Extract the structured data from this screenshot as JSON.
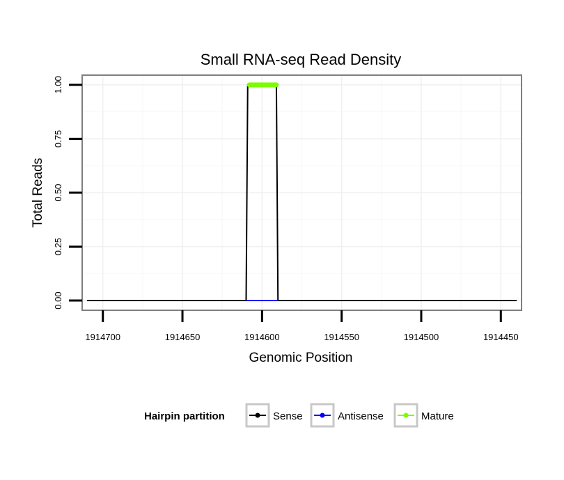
{
  "chart_data": {
    "type": "line",
    "title": "Small RNA-seq Read Density",
    "xlabel": "Genomic Position",
    "ylabel": "Total Reads",
    "x_reversed": true,
    "xlim": [
      1914713,
      1914437
    ],
    "ylim": [
      -0.045,
      1.045
    ],
    "x_ticks": [
      1914700,
      1914650,
      1914600,
      1914550,
      1914500,
      1914450
    ],
    "x_tick_labels": [
      "1914700",
      "1914650",
      "1914600",
      "1914550",
      "1914500",
      "1914450"
    ],
    "y_ticks": [
      0,
      0.25,
      0.5,
      0.75,
      1.0
    ],
    "y_tick_labels": [
      "0.00",
      "0.25",
      "0.50",
      "0.75",
      "1.00"
    ],
    "grid": true,
    "legend": {
      "title": "Hairpin partition",
      "position": "bottom",
      "entries": [
        "Sense",
        "Antisense",
        "Mature"
      ]
    },
    "series": [
      {
        "name": "Sense",
        "color": "#000000",
        "points": [
          [
            1914710,
            0
          ],
          [
            1914610,
            0
          ],
          [
            1914609,
            1
          ],
          [
            1914591,
            1
          ],
          [
            1914590,
            0
          ],
          [
            1914440,
            0
          ]
        ]
      },
      {
        "name": "Antisense",
        "color": "#0000ff",
        "points": [
          [
            1914610,
            0
          ],
          [
            1914590,
            0
          ]
        ]
      },
      {
        "name": "Mature",
        "color": "#7cfc00",
        "points": [
          [
            1914608,
            1
          ],
          [
            1914591,
            1
          ]
        ]
      }
    ]
  }
}
